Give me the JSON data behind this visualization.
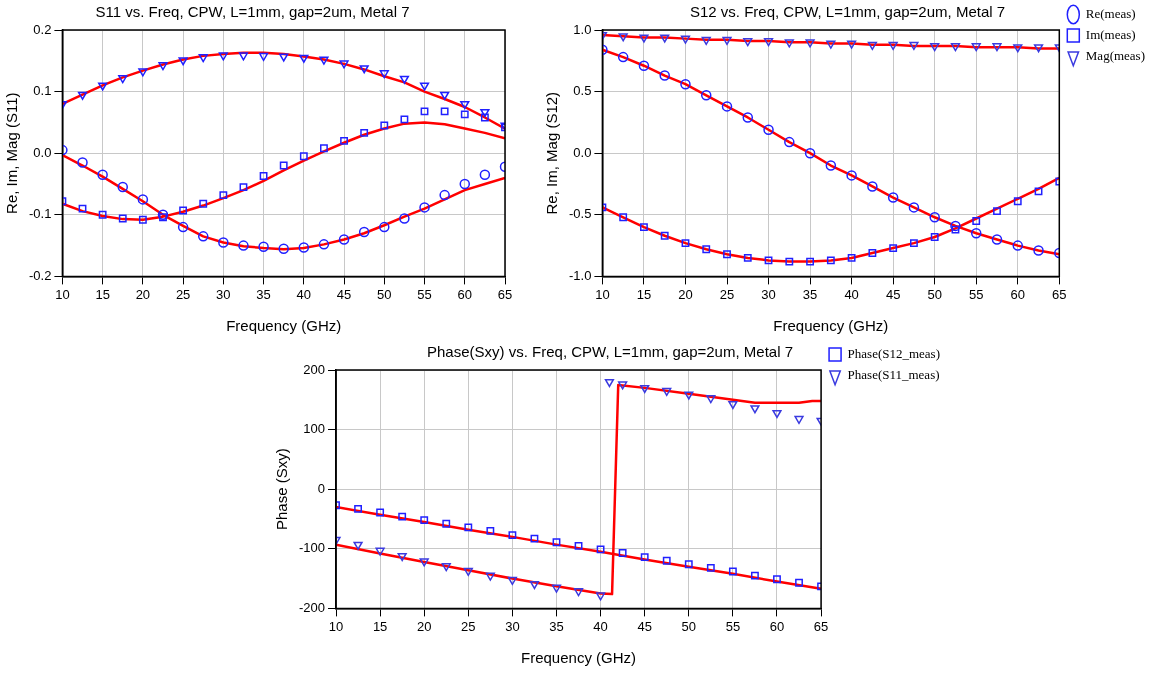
{
  "chart_data": [
    {
      "type": "scatter",
      "title": "S11 vs. Freq, CPW, L=1mm, gap=2um, Metal 7",
      "xlabel": "Frequency (GHz)",
      "ylabel": "Re, Im, Mag (S11)",
      "x": [
        10,
        12.5,
        15,
        17.5,
        20,
        22.5,
        25,
        27.5,
        30,
        32.5,
        35,
        37.5,
        40,
        42.5,
        45,
        47.5,
        50,
        52.5,
        55,
        57.5,
        60,
        62.5,
        65
      ],
      "xlim": [
        10,
        65
      ],
      "xticks": [
        10,
        15,
        20,
        25,
        30,
        35,
        40,
        45,
        50,
        55,
        60,
        65
      ],
      "ylim": [
        -0.2,
        0.2
      ],
      "yticks": [
        -0.2,
        -0.1,
        {
          "value": 0,
          "label": "0.0"
        },
        0.1,
        0.2
      ],
      "grid": true,
      "legend": false,
      "series": [
        {
          "marker": "circle",
          "color": "#2020ff",
          "values": [
            0.005,
            -0.015,
            -0.035,
            -0.055,
            -0.075,
            -0.1,
            -0.12,
            -0.135,
            -0.145,
            -0.15,
            -0.152,
            -0.155,
            -0.153,
            -0.148,
            -0.14,
            -0.128,
            -0.12,
            -0.106,
            -0.088,
            -0.068,
            -0.05,
            -0.035,
            -0.022
          ]
        },
        {
          "marker": "square",
          "color": "#2020ff",
          "values": [
            -0.078,
            -0.09,
            -0.1,
            -0.106,
            -0.108,
            -0.104,
            -0.093,
            -0.082,
            -0.068,
            -0.055,
            -0.037,
            -0.02,
            -0.005,
            0.008,
            0.02,
            0.033,
            0.045,
            0.055,
            0.068,
            0.068,
            0.063,
            0.058,
            0.042
          ]
        },
        {
          "marker": "triangle",
          "color": "#2020ff",
          "values": [
            0.08,
            0.095,
            0.11,
            0.122,
            0.133,
            0.143,
            0.151,
            0.156,
            0.159,
            0.159,
            0.158,
            0.157,
            0.155,
            0.152,
            0.146,
            0.138,
            0.13,
            0.121,
            0.11,
            0.095,
            0.08,
            0.067,
            0.045
          ]
        },
        {
          "type": "line",
          "color": "#ff0000",
          "values": [
            -0.003,
            -0.02,
            -0.038,
            -0.058,
            -0.078,
            -0.1,
            -0.118,
            -0.135,
            -0.145,
            -0.151,
            -0.154,
            -0.156,
            -0.154,
            -0.148,
            -0.14,
            -0.13,
            -0.117,
            -0.103,
            -0.09,
            -0.075,
            -0.06,
            -0.05,
            -0.04
          ]
        },
        {
          "type": "line",
          "color": "#ff0000",
          "values": [
            -0.082,
            -0.094,
            -0.102,
            -0.107,
            -0.108,
            -0.103,
            -0.095,
            -0.085,
            -0.073,
            -0.06,
            -0.045,
            -0.028,
            -0.012,
            0.003,
            0.017,
            0.03,
            0.04,
            0.048,
            0.05,
            0.047,
            0.04,
            0.033,
            0.024
          ]
        },
        {
          "type": "line",
          "color": "#ff0000",
          "values": [
            0.08,
            0.095,
            0.11,
            0.123,
            0.134,
            0.144,
            0.152,
            0.158,
            0.161,
            0.163,
            0.163,
            0.161,
            0.157,
            0.152,
            0.145,
            0.136,
            0.125,
            0.115,
            0.1,
            0.088,
            0.075,
            0.058,
            0.04
          ]
        }
      ]
    },
    {
      "type": "scatter",
      "title": "S12 vs. Freq, CPW, L=1mm, gap=2um, Metal 7",
      "xlabel": "Frequency (GHz)",
      "ylabel": "Re, Im, Mag (S12)",
      "x": [
        10,
        12.5,
        15,
        17.5,
        20,
        22.5,
        25,
        27.5,
        30,
        32.5,
        35,
        37.5,
        40,
        42.5,
        45,
        47.5,
        50,
        52.5,
        55,
        57.5,
        60,
        62.5,
        65
      ],
      "xlim": [
        10,
        65
      ],
      "xticks": [
        10,
        15,
        20,
        25,
        30,
        35,
        40,
        45,
        50,
        55,
        60,
        65
      ],
      "ylim": [
        -1,
        1
      ],
      "yticks": [
        {
          "value": -1,
          "label": "-1.0"
        },
        -0.5,
        {
          "value": 0,
          "label": "0.0"
        },
        0.5,
        {
          "value": 1,
          "label": "1.0"
        }
      ],
      "grid": true,
      "legend": "top right",
      "series": [
        {
          "name": "Re(meas)",
          "marker": "circle",
          "color": "#2020ff",
          "values": [
            0.84,
            0.78,
            0.71,
            0.63,
            0.56,
            0.47,
            0.38,
            0.29,
            0.19,
            0.09,
            0.0,
            -0.1,
            -0.18,
            -0.27,
            -0.36,
            -0.44,
            -0.52,
            -0.59,
            -0.65,
            -0.7,
            -0.75,
            -0.79,
            -0.81
          ]
        },
        {
          "name": "Im(meas)",
          "marker": "square",
          "color": "#2020ff",
          "values": [
            -0.44,
            -0.52,
            -0.6,
            -0.67,
            -0.73,
            -0.78,
            -0.82,
            -0.85,
            -0.87,
            -0.88,
            -0.88,
            -0.87,
            -0.85,
            -0.81,
            -0.77,
            -0.73,
            -0.68,
            -0.62,
            -0.55,
            -0.47,
            -0.39,
            -0.31,
            -0.23
          ]
        },
        {
          "name": "Mag(meas)",
          "marker": "triangle",
          "color": "#3a3ae0",
          "values": [
            0.96,
            0.95,
            0.94,
            0.94,
            0.93,
            0.92,
            0.92,
            0.91,
            0.91,
            0.9,
            0.9,
            0.89,
            0.89,
            0.88,
            0.88,
            0.88,
            0.87,
            0.87,
            0.87,
            0.87,
            0.86,
            0.86,
            0.86
          ]
        },
        {
          "type": "line",
          "color": "#ff0000",
          "values": [
            0.84,
            0.78,
            0.71,
            0.63,
            0.56,
            0.47,
            0.38,
            0.29,
            0.19,
            0.09,
            0.0,
            -0.1,
            -0.18,
            -0.27,
            -0.36,
            -0.44,
            -0.52,
            -0.59,
            -0.65,
            -0.7,
            -0.75,
            -0.79,
            -0.82
          ]
        },
        {
          "type": "line",
          "color": "#ff0000",
          "values": [
            -0.44,
            -0.52,
            -0.6,
            -0.67,
            -0.73,
            -0.78,
            -0.82,
            -0.85,
            -0.87,
            -0.88,
            -0.88,
            -0.87,
            -0.85,
            -0.81,
            -0.77,
            -0.73,
            -0.68,
            -0.61,
            -0.53,
            -0.45,
            -0.37,
            -0.29,
            -0.2
          ]
        },
        {
          "type": "line",
          "color": "#ff0000",
          "values": [
            0.96,
            0.95,
            0.94,
            0.94,
            0.93,
            0.92,
            0.92,
            0.91,
            0.91,
            0.9,
            0.9,
            0.89,
            0.89,
            0.88,
            0.88,
            0.87,
            0.87,
            0.87,
            0.86,
            0.86,
            0.86,
            0.85,
            0.85
          ]
        }
      ]
    },
    {
      "type": "scatter",
      "title": "Phase(Sxy) vs. Freq, CPW, L=1mm, gap=2um, Metal 7",
      "xlabel": "Frequency (GHz)",
      "ylabel": "Phase (Sxy)",
      "xlim": [
        10,
        65
      ],
      "xticks": [
        10,
        15,
        20,
        25,
        30,
        35,
        40,
        45,
        50,
        55,
        60,
        65
      ],
      "ylim": [
        -200,
        200
      ],
      "yticks": [
        -200,
        -100,
        0,
        100,
        200
      ],
      "grid": true,
      "legend": "top right",
      "series": [
        {
          "name": "Phase(S12_meas)",
          "marker": "square",
          "color": "#2020ff",
          "x": [
            10,
            12.5,
            15,
            17.5,
            20,
            22.5,
            25,
            27.5,
            30,
            32.5,
            35,
            37.5,
            40,
            42.5,
            45,
            47.5,
            50,
            52.5,
            55,
            57.5,
            60,
            62.5,
            65
          ],
          "values": [
            -27,
            -33,
            -39,
            -46,
            -52,
            -58,
            -64,
            -70,
            -77,
            -83,
            -89,
            -95,
            -101,
            -107,
            -114,
            -120,
            -126,
            -132,
            -138,
            -145,
            -151,
            -157,
            -163
          ]
        },
        {
          "name": "Phase(S11_meas)",
          "marker": "triangle",
          "color": "#3a3ae0",
          "x": [
            10,
            12.5,
            15,
            17.5,
            20,
            22.5,
            25,
            27.5,
            30,
            32.5,
            35,
            37.5,
            40,
            41,
            42.5,
            45,
            47.5,
            50,
            52.5,
            55,
            57.5,
            60,
            62.5,
            65
          ],
          "values": [
            -85,
            -93,
            -103,
            -112,
            -121,
            -129,
            -137,
            -145,
            -152,
            -159,
            -165,
            -171,
            -178,
            180,
            176,
            170,
            165,
            159,
            153,
            143,
            136,
            128,
            118,
            115
          ]
        },
        {
          "type": "line",
          "color": "#ff0000",
          "x": [
            10,
            15,
            20,
            25,
            30,
            35,
            40,
            45,
            50,
            55,
            60,
            65
          ],
          "values": [
            -30,
            -43,
            -55,
            -68,
            -80,
            -93,
            -105,
            -118,
            -130,
            -142,
            -155,
            -167
          ]
        },
        {
          "type": "line",
          "color": "#ff0000",
          "x": [
            10,
            15,
            20,
            25,
            30,
            35,
            40,
            41.3,
            42,
            45,
            50,
            55,
            57.5,
            60,
            62.5,
            64,
            65
          ],
          "values": [
            -93,
            -108,
            -122,
            -136,
            -150,
            -163,
            -175,
            -176,
            175,
            170,
            160,
            150,
            145,
            145,
            145,
            148,
            148
          ]
        }
      ]
    }
  ]
}
